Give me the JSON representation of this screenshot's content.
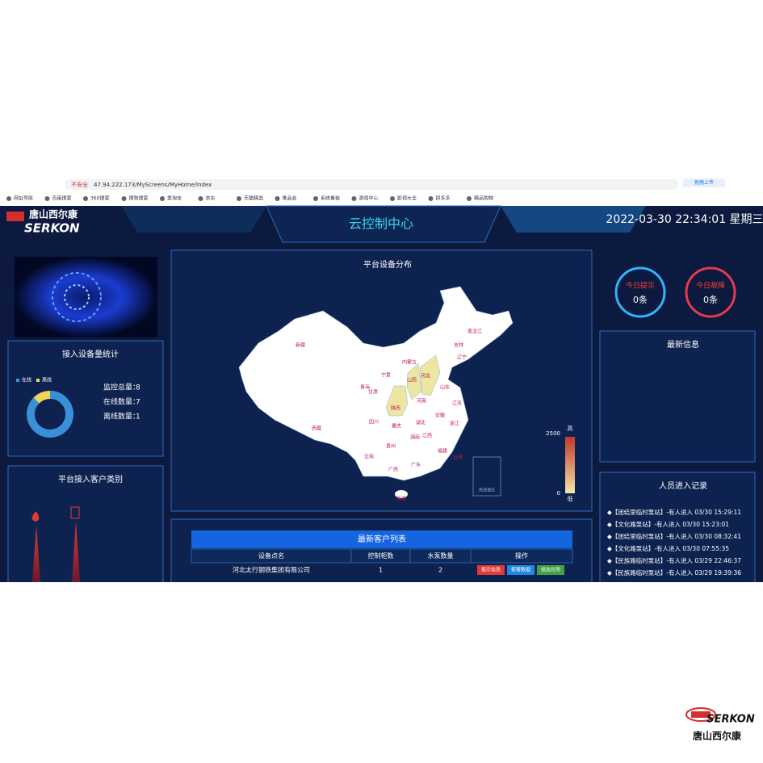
{
  "browser": {
    "insecure": "不安全",
    "url": "47.94.222.173/MyScreens/MyHome/Index",
    "upload": "拖拽上传",
    "bookmarks": [
      "网址导航",
      "百度搜索",
      "360搜索",
      "搜狗搜索",
      "爱淘宝",
      "京东",
      "天猫精选",
      "唯品会",
      "系统重装",
      "游戏中心",
      "影视大全",
      "拼多多",
      "精品购物"
    ]
  },
  "header": {
    "logo_cn": "唐山西尔康",
    "logo_en": "SERKON",
    "title": "云控制中心",
    "datetime": "2022-03-30 22:34:01 星期三"
  },
  "device_stats": {
    "title": "接入设备量统计",
    "legend": [
      "在线",
      "离线"
    ],
    "stats": [
      {
        "label": "监控总量：",
        "value": 8
      },
      {
        "label": "在线数量：",
        "value": 7
      },
      {
        "label": "离线数量：",
        "value": 1
      }
    ]
  },
  "customer_types": {
    "title": "平台接入客户类别"
  },
  "map": {
    "title": "平台设备分布",
    "provinces": [
      "新疆",
      "西藏",
      "青海",
      "甘肃",
      "宁夏",
      "内蒙古",
      "黑龙江",
      "吉林",
      "辽宁",
      "河北",
      "山西",
      "陕西",
      "山东",
      "河南",
      "江苏",
      "安徽",
      "四川",
      "重庆",
      "湖北",
      "湖南",
      "江西",
      "浙江",
      "福建",
      "贵州",
      "云南",
      "广西",
      "广东",
      "海南",
      "台湾"
    ],
    "south_sea": "南海诸岛",
    "scale_max": 2500,
    "scale_min": 0,
    "high": "高",
    "low": "低"
  },
  "alerts": [
    {
      "title": "今日提示",
      "count": "0条"
    },
    {
      "title": "今日故障",
      "count": "0条"
    }
  ],
  "latest_info": {
    "title": "最新信息"
  },
  "entry_log": {
    "title": "人员进入记录",
    "items": [
      "◆【团结里临时泵站】-有人进入 03/30 15:29:11",
      "◆【文化路泵站】-有人进入 03/30 15:23:01",
      "◆【团结里临时泵站】-有人进入 03/30 08:32:41",
      "◆【文化路泵站】-有人进入 03/30 07:55:35",
      "◆【民族路临时泵站】-有人进入 03/29 22:46:37",
      "◆【民族路临时泵站】-有人进入 03/29 19:39:36"
    ]
  },
  "table": {
    "title": "最新客户列表",
    "headers": [
      "设备点名",
      "控制柜数",
      "水泵数量",
      "操作"
    ],
    "rows": [
      [
        "河北太行钢铁集团有限公司",
        1,
        2
      ]
    ],
    "buttons": [
      "提示信息",
      "报警数据",
      "组态应用"
    ]
  },
  "footer_logo": {
    "en": "SERKON",
    "cn": "唐山西尔康"
  }
}
